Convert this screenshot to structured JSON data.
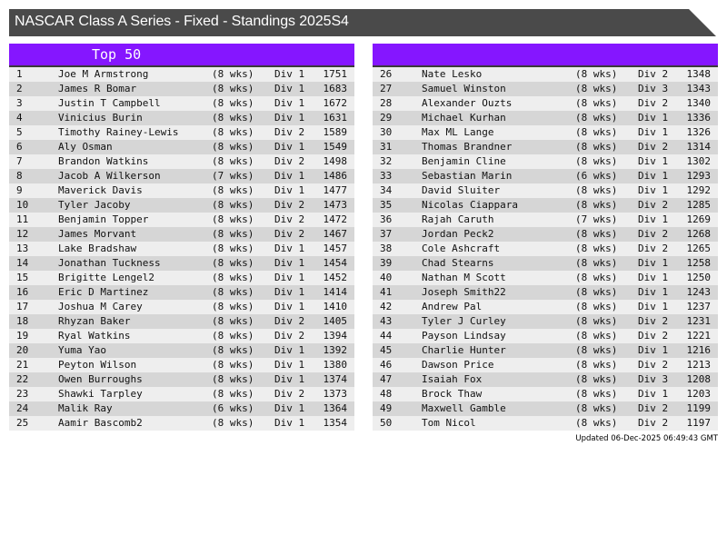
{
  "title": "NASCAR Class A Series - Fixed - Standings 2025S4",
  "left_panel": {
    "header": "Top 50"
  },
  "right_panel": {
    "header": ""
  },
  "updated": "Updated 06-Dec-2025 06:49:43 GMT",
  "colors": {
    "header_purple": "#8516ff",
    "title_bg": "#4a4a4a",
    "row_light": "#eeeeee",
    "row_dark": "#d6d6d6"
  },
  "standings": [
    [
      "1",
      "Joe M Armstrong",
      "(8 wks)",
      "Div 1",
      "1751"
    ],
    [
      "2",
      "James R Bomar",
      "(8 wks)",
      "Div 1",
      "1683"
    ],
    [
      "3",
      "Justin T Campbell",
      "(8 wks)",
      "Div 1",
      "1672"
    ],
    [
      "4",
      "Vinicius Burin",
      "(8 wks)",
      "Div 1",
      "1631"
    ],
    [
      "5",
      "Timothy Rainey-Lewis",
      "(8 wks)",
      "Div 2",
      "1589"
    ],
    [
      "6",
      "Aly Osman",
      "(8 wks)",
      "Div 1",
      "1549"
    ],
    [
      "7",
      "Brandon Watkins",
      "(8 wks)",
      "Div 2",
      "1498"
    ],
    [
      "8",
      "Jacob A Wilkerson",
      "(7 wks)",
      "Div 1",
      "1486"
    ],
    [
      "9",
      "Maverick Davis",
      "(8 wks)",
      "Div 1",
      "1477"
    ],
    [
      "10",
      "Tyler Jacoby",
      "(8 wks)",
      "Div 2",
      "1473"
    ],
    [
      "11",
      "Benjamin Topper",
      "(8 wks)",
      "Div 2",
      "1472"
    ],
    [
      "12",
      "James Morvant",
      "(8 wks)",
      "Div 2",
      "1467"
    ],
    [
      "13",
      "Lake Bradshaw",
      "(8 wks)",
      "Div 1",
      "1457"
    ],
    [
      "14",
      "Jonathan Tuckness",
      "(8 wks)",
      "Div 1",
      "1454"
    ],
    [
      "15",
      "Brigitte Lengel2",
      "(8 wks)",
      "Div 1",
      "1452"
    ],
    [
      "16",
      "Eric D Martinez",
      "(8 wks)",
      "Div 1",
      "1414"
    ],
    [
      "17",
      "Joshua M Carey",
      "(8 wks)",
      "Div 1",
      "1410"
    ],
    [
      "18",
      "Rhyzan Baker",
      "(8 wks)",
      "Div 2",
      "1405"
    ],
    [
      "19",
      "Ryal Watkins",
      "(8 wks)",
      "Div 2",
      "1394"
    ],
    [
      "20",
      "Yuma Yao",
      "(8 wks)",
      "Div 1",
      "1392"
    ],
    [
      "21",
      "Peyton Wilson",
      "(8 wks)",
      "Div 1",
      "1380"
    ],
    [
      "22",
      "Owen Burroughs",
      "(8 wks)",
      "Div 1",
      "1374"
    ],
    [
      "23",
      "Shawki Tarpley",
      "(8 wks)",
      "Div 2",
      "1373"
    ],
    [
      "24",
      "Malik Ray",
      "(6 wks)",
      "Div 1",
      "1364"
    ],
    [
      "25",
      "Aamir Bascomb2",
      "(8 wks)",
      "Div 1",
      "1354"
    ],
    [
      "26",
      "Nate Lesko",
      "(8 wks)",
      "Div 2",
      "1348"
    ],
    [
      "27",
      "Samuel Winston",
      "(8 wks)",
      "Div 3",
      "1343"
    ],
    [
      "28",
      "Alexander Ouzts",
      "(8 wks)",
      "Div 2",
      "1340"
    ],
    [
      "29",
      "Michael Kurhan",
      "(8 wks)",
      "Div 1",
      "1336"
    ],
    [
      "30",
      "Max ML Lange",
      "(8 wks)",
      "Div 1",
      "1326"
    ],
    [
      "31",
      "Thomas Brandner",
      "(8 wks)",
      "Div 2",
      "1314"
    ],
    [
      "32",
      "Benjamin Cline",
      "(8 wks)",
      "Div 1",
      "1302"
    ],
    [
      "33",
      "Sebastian Marin",
      "(6 wks)",
      "Div 1",
      "1293"
    ],
    [
      "34",
      "David Sluiter",
      "(8 wks)",
      "Div 1",
      "1292"
    ],
    [
      "35",
      "Nicolas Ciappara",
      "(8 wks)",
      "Div 2",
      "1285"
    ],
    [
      "36",
      "Rajah Caruth",
      "(7 wks)",
      "Div 1",
      "1269"
    ],
    [
      "37",
      "Jordan Peck2",
      "(8 wks)",
      "Div 2",
      "1268"
    ],
    [
      "38",
      "Cole Ashcraft",
      "(8 wks)",
      "Div 2",
      "1265"
    ],
    [
      "39",
      "Chad Stearns",
      "(8 wks)",
      "Div 1",
      "1258"
    ],
    [
      "40",
      "Nathan M Scott",
      "(8 wks)",
      "Div 1",
      "1250"
    ],
    [
      "41",
      "Joseph Smith22",
      "(8 wks)",
      "Div 1",
      "1243"
    ],
    [
      "42",
      "Andrew Pal",
      "(8 wks)",
      "Div 1",
      "1237"
    ],
    [
      "43",
      "Tyler J Curley",
      "(8 wks)",
      "Div 2",
      "1231"
    ],
    [
      "44",
      "Payson Lindsay",
      "(8 wks)",
      "Div 2",
      "1221"
    ],
    [
      "45",
      "Charlie Hunter",
      "(8 wks)",
      "Div 1",
      "1216"
    ],
    [
      "46",
      "Dawson Price",
      "(8 wks)",
      "Div 2",
      "1213"
    ],
    [
      "47",
      "Isaiah Fox",
      "(8 wks)",
      "Div 3",
      "1208"
    ],
    [
      "48",
      "Brock Thaw",
      "(8 wks)",
      "Div 1",
      "1203"
    ],
    [
      "49",
      "Maxwell Gamble",
      "(8 wks)",
      "Div 2",
      "1199"
    ],
    [
      "50",
      "Tom Nicol",
      "(8 wks)",
      "Div 2",
      "1197"
    ]
  ]
}
